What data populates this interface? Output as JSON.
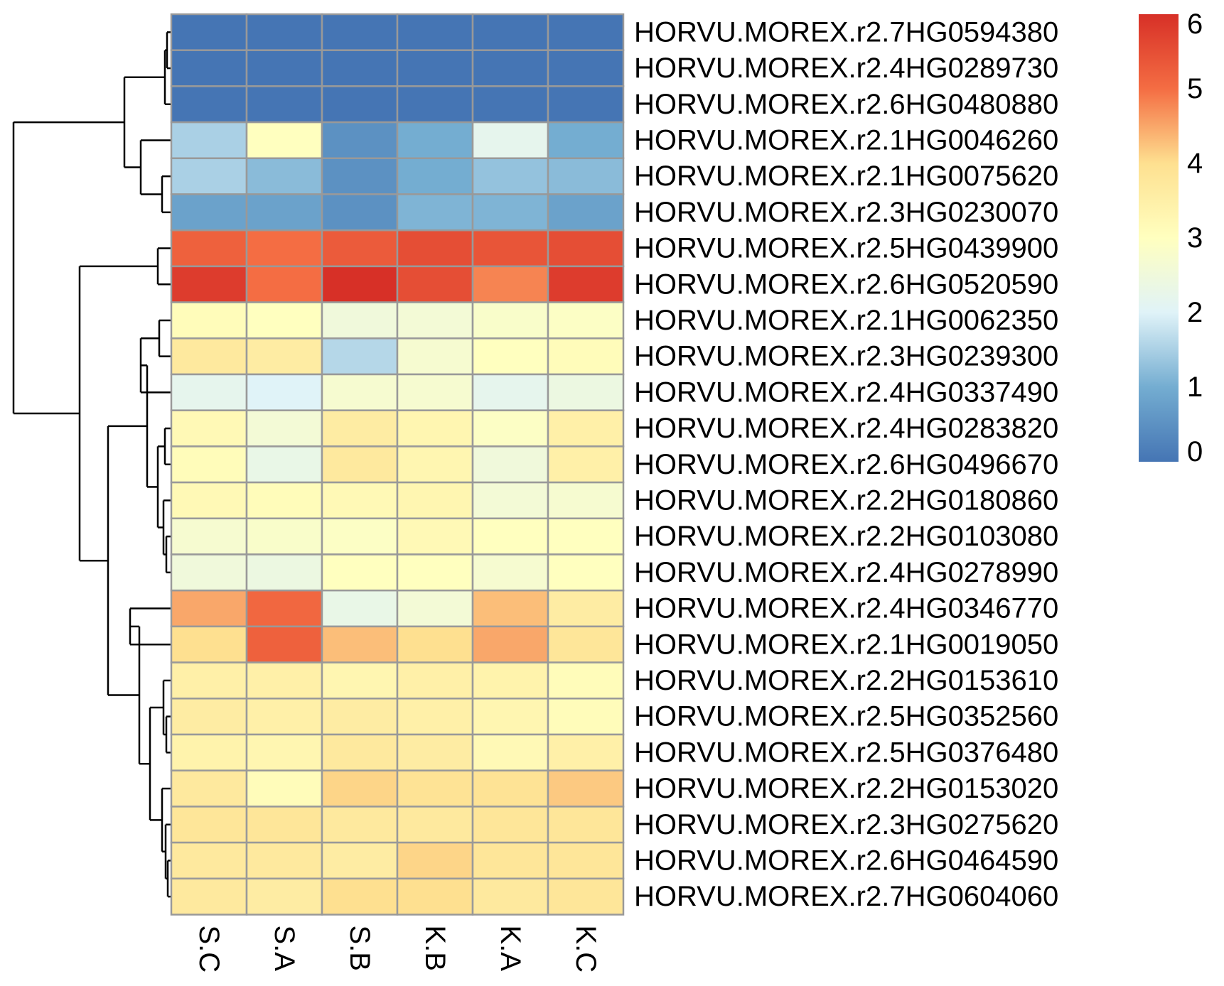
{
  "chart_data": {
    "type": "heatmap",
    "title": "",
    "xlabel": "",
    "ylabel": "",
    "columns": [
      "S.C",
      "S.A",
      "S.B",
      "K.B",
      "K.A",
      "K.C"
    ],
    "rows": [
      "HORVU.MOREX.r2.7HG0594380",
      "HORVU.MOREX.r2.4HG0289730",
      "HORVU.MOREX.r2.6HG0480880",
      "HORVU.MOREX.r2.1HG0046260",
      "HORVU.MOREX.r2.1HG0075620",
      "HORVU.MOREX.r2.3HG0230070",
      "HORVU.MOREX.r2.5HG0439900",
      "HORVU.MOREX.r2.6HG0520590",
      "HORVU.MOREX.r2.1HG0062350",
      "HORVU.MOREX.r2.3HG0239300",
      "HORVU.MOREX.r2.4HG0337490",
      "HORVU.MOREX.r2.4HG0283820",
      "HORVU.MOREX.r2.6HG0496670",
      "HORVU.MOREX.r2.2HG0180860",
      "HORVU.MOREX.r2.2HG0103080",
      "HORVU.MOREX.r2.4HG0278990",
      "HORVU.MOREX.r2.4HG0346770",
      "HORVU.MOREX.r2.1HG0019050",
      "HORVU.MOREX.r2.2HG0153610",
      "HORVU.MOREX.r2.5HG0352560",
      "HORVU.MOREX.r2.5HG0376480",
      "HORVU.MOREX.r2.2HG0153020",
      "HORVU.MOREX.r2.3HG0275620",
      "HORVU.MOREX.r2.6HG0464590",
      "HORVU.MOREX.r2.7HG0604060"
    ],
    "values": [
      [
        0.0,
        0.0,
        0.0,
        0.0,
        0.0,
        0.0
      ],
      [
        0.0,
        0.0,
        0.0,
        0.0,
        0.0,
        0.0
      ],
      [
        0.0,
        0.0,
        0.0,
        0.0,
        0.0,
        0.0
      ],
      [
        1.5,
        3.0,
        0.5,
        1.0,
        2.2,
        1.0
      ],
      [
        1.5,
        1.2,
        0.5,
        1.0,
        1.3,
        1.2
      ],
      [
        0.8,
        0.8,
        0.5,
        1.1,
        1.1,
        0.8
      ],
      [
        5.2,
        5.0,
        5.3,
        5.5,
        5.4,
        5.5
      ],
      [
        5.8,
        5.0,
        6.0,
        5.5,
        4.8,
        5.8
      ],
      [
        3.1,
        3.0,
        2.5,
        2.6,
        2.8,
        2.9
      ],
      [
        3.7,
        3.6,
        1.6,
        2.7,
        3.0,
        3.1
      ],
      [
        2.2,
        2.0,
        2.7,
        2.7,
        2.2,
        2.4
      ],
      [
        3.2,
        2.6,
        3.6,
        3.3,
        2.9,
        3.5
      ],
      [
        3.1,
        2.3,
        3.7,
        3.3,
        2.5,
        3.5
      ],
      [
        3.2,
        3.1,
        3.2,
        3.3,
        2.6,
        2.7
      ],
      [
        2.7,
        2.8,
        2.9,
        3.2,
        3.0,
        3.0
      ],
      [
        2.5,
        2.4,
        3.0,
        3.0,
        2.7,
        3.0
      ],
      [
        4.5,
        5.1,
        2.3,
        2.6,
        4.3,
        3.6
      ],
      [
        4.0,
        5.2,
        4.3,
        4.0,
        4.5,
        3.8
      ],
      [
        3.5,
        3.5,
        3.3,
        3.5,
        3.4,
        3.1
      ],
      [
        3.6,
        3.5,
        3.6,
        3.5,
        3.3,
        3.1
      ],
      [
        3.4,
        3.3,
        3.7,
        3.6,
        3.2,
        3.5
      ],
      [
        3.7,
        3.1,
        4.1,
        3.9,
        3.9,
        4.2
      ],
      [
        3.8,
        3.8,
        3.7,
        3.7,
        3.8,
        3.8
      ],
      [
        3.7,
        3.7,
        3.6,
        4.1,
        3.8,
        3.8
      ],
      [
        3.7,
        3.6,
        4.0,
        4.0,
        3.7,
        3.8
      ]
    ],
    "legend": {
      "min": 0,
      "max": 6,
      "ticks": [
        "0",
        "1",
        "2",
        "3",
        "4",
        "5",
        "6"
      ],
      "placement": "right"
    },
    "colors": {
      "low": "#4575b4",
      "mid": "#ffffbf",
      "high": "#d73027",
      "cell_border": "#999999",
      "dendrogram": "#000000"
    }
  }
}
